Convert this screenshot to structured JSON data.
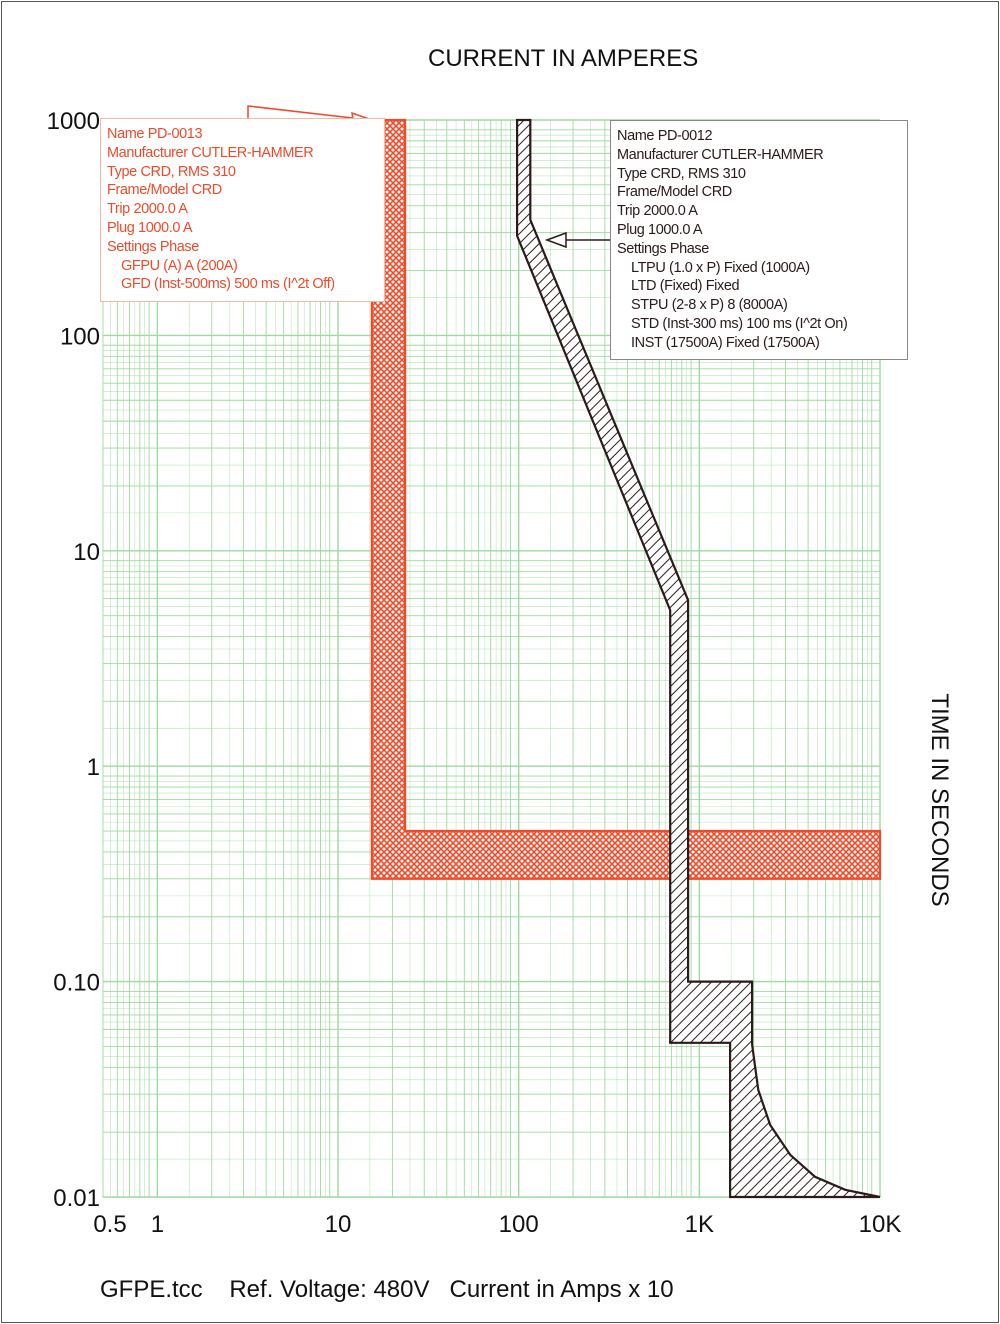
{
  "chart_data": {
    "type": "line",
    "title": "CURRENT IN AMPERES",
    "xlabel": "CURRENT IN AMPERES",
    "ylabel": "TIME IN SECONDS",
    "x_scale": "log",
    "y_scale": "log",
    "xlim": [
      0.5,
      10000
    ],
    "ylim": [
      0.01,
      1000
    ],
    "grid": true,
    "x_ticks": [
      0.5,
      1,
      10,
      100,
      1000,
      10000
    ],
    "x_tick_labels": [
      "0.5",
      "1",
      "10",
      "100",
      "1K",
      "10K"
    ],
    "y_ticks": [
      1000,
      100,
      10,
      1,
      0.1,
      0.01
    ],
    "y_tick_labels": [
      "1000",
      "100",
      "10",
      "1",
      "0.10",
      "0.01"
    ],
    "colors": {
      "grid": "#9ed99e",
      "pd0013": "#ee4b2b",
      "pd0012": "#2a1a1a"
    },
    "series": [
      {
        "name": "PD-0013",
        "style": "crosshatch band",
        "polygon": [
          [
            15.4,
            1000
          ],
          [
            23.5,
            1000
          ],
          [
            23.5,
            0.5
          ],
          [
            10000,
            0.5
          ],
          [
            10000,
            0.3
          ],
          [
            15.4,
            0.3
          ]
        ]
      },
      {
        "name": "PD-0012",
        "style": "diagonal hatch band",
        "polygon": [
          [
            98,
            1000
          ],
          [
            116,
            1000
          ],
          [
            116,
            344
          ],
          [
            867,
            5.9
          ],
          [
            867,
            0.1
          ],
          [
            1960,
            0.1
          ],
          [
            1960,
            0.051
          ],
          [
            2120,
            0.0314
          ],
          [
            2466,
            0.0216
          ],
          [
            3184,
            0.0157
          ],
          [
            4378,
            0.0124
          ],
          [
            6420,
            0.0108
          ],
          [
            10000,
            0.01
          ],
          [
            1480,
            0.01
          ],
          [
            1480,
            0.052
          ],
          [
            690,
            0.052
          ],
          [
            690,
            5.3
          ],
          [
            98,
            290
          ]
        ]
      }
    ],
    "annotations": [
      {
        "series": "PD-0013",
        "lines": [
          "Name PD-0013",
          "Manufacturer CUTLER-HAMMER",
          "Type CRD, RMS 310",
          "Frame/Model CRD",
          "Trip 2000.0 A",
          "Plug 1000.0 A",
          "Settings Phase",
          "GFPU (A) A (200A)",
          "GFD (Inst-500ms) 500 ms (I^2t Off)"
        ]
      },
      {
        "series": "PD-0012",
        "lines": [
          "Name PD-0012",
          "Manufacturer CUTLER-HAMMER",
          "Type CRD, RMS 310",
          "Frame/Model CRD",
          "Trip 2000.0 A",
          "Plug 1000.0 A",
          "Settings Phase",
          "LTPU (1.0 x P) Fixed (1000A)",
          "LTD (Fixed) Fixed",
          "STPU (2-8 x P) 8 (8000A)",
          "STD (Inst-300 ms) 100 ms (I^2t On)",
          "INST (17500A) Fixed (17500A)"
        ]
      }
    ]
  },
  "footer": "GFPE.tcc    Ref. Voltage: 480V   Current in Amps x 10"
}
